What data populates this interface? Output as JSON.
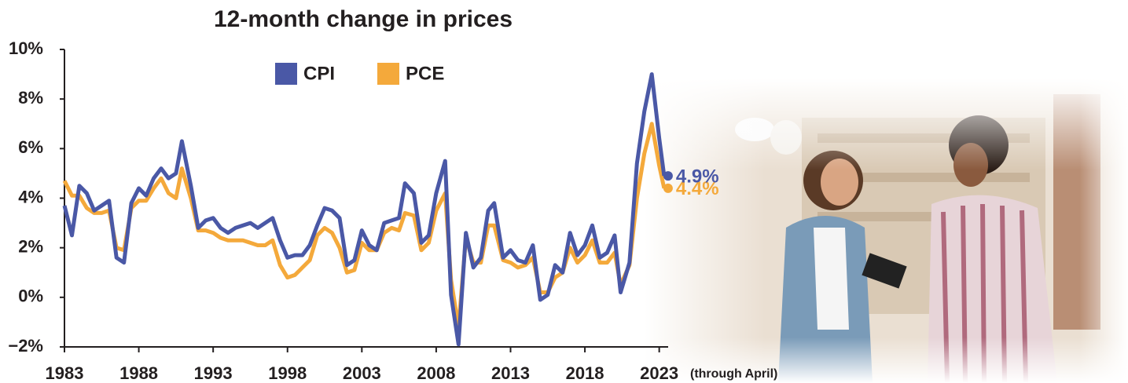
{
  "chart_data": {
    "type": "line",
    "title": "12-month change in prices",
    "annotation": "(through April)",
    "x": [
      1983.0,
      1983.5,
      1984,
      1984.5,
      1985,
      1985.5,
      1986,
      1986.5,
      1987,
      1987.5,
      1988,
      1988.5,
      1989,
      1989.5,
      1990,
      1990.5,
      1990.9,
      1991.5,
      1992,
      1992.5,
      1993,
      1993.5,
      1994,
      1994.5,
      1995,
      1995.5,
      1996,
      1996.5,
      1997,
      1997.5,
      1998,
      1998.5,
      1999,
      1999.5,
      2000,
      2000.5,
      2001,
      2001.5,
      2002,
      2002.5,
      2003,
      2003.5,
      2004,
      2004.5,
      2005,
      2005.5,
      2005.9,
      2006.5,
      2007,
      2007.5,
      2008,
      2008.6,
      2009,
      2009.5,
      2010,
      2010.5,
      2011,
      2011.5,
      2011.9,
      2012.5,
      2013,
      2013.5,
      2014,
      2014.5,
      2015,
      2015.5,
      2016,
      2016.5,
      2017,
      2017.5,
      2018,
      2018.5,
      2019,
      2019.5,
      2020,
      2020.4,
      2021,
      2021.5,
      2022,
      2022.5,
      2023,
      2023.33
    ],
    "series": [
      {
        "name": "CPI",
        "color": "#4a58a6",
        "values": [
          3.7,
          2.5,
          4.5,
          4.2,
          3.5,
          3.7,
          3.9,
          1.6,
          1.4,
          3.8,
          4.4,
          4.1,
          4.8,
          5.2,
          4.8,
          5.0,
          6.3,
          4.5,
          2.8,
          3.1,
          3.2,
          2.8,
          2.6,
          2.8,
          2.9,
          3.0,
          2.8,
          3.0,
          3.2,
          2.3,
          1.6,
          1.7,
          1.7,
          2.1,
          2.9,
          3.6,
          3.5,
          3.2,
          1.3,
          1.5,
          2.7,
          2.1,
          1.9,
          3.0,
          3.1,
          3.2,
          4.6,
          4.2,
          2.2,
          2.5,
          4.2,
          5.5,
          0.1,
          -1.9,
          2.6,
          1.2,
          1.6,
          3.5,
          3.8,
          1.6,
          1.9,
          1.5,
          1.4,
          2.1,
          -0.1,
          0.1,
          1.3,
          1.0,
          2.6,
          1.7,
          2.1,
          2.9,
          1.6,
          1.8,
          2.5,
          0.2,
          1.4,
          5.4,
          7.5,
          9.0,
          6.4,
          4.9
        ],
        "value_labels": [
          null,
          null,
          null,
          null,
          null,
          null,
          null,
          null,
          null,
          null,
          null,
          null,
          null,
          null,
          null,
          null,
          null,
          null,
          null,
          null,
          null,
          null,
          null,
          null,
          null,
          null,
          null,
          null,
          null,
          null,
          null,
          null,
          null,
          null,
          null,
          null,
          null,
          null,
          null,
          null,
          null,
          null,
          null,
          null,
          null,
          null,
          null,
          null,
          null,
          null,
          null,
          null,
          null,
          null,
          null,
          null,
          null,
          null,
          null,
          null,
          null,
          null,
          null,
          null,
          null,
          null,
          null,
          null,
          null,
          null,
          null,
          null,
          null,
          null,
          null,
          null,
          null,
          null,
          null,
          null,
          null,
          "4.9%"
        ]
      },
      {
        "name": "PCE",
        "color": "#f4a93b",
        "values": [
          4.7,
          4.1,
          4.1,
          3.6,
          3.4,
          3.4,
          3.5,
          2.0,
          1.9,
          3.6,
          3.9,
          3.9,
          4.4,
          4.8,
          4.2,
          4.0,
          5.2,
          4.0,
          2.7,
          2.7,
          2.6,
          2.4,
          2.3,
          2.3,
          2.3,
          2.2,
          2.1,
          2.1,
          2.3,
          1.3,
          0.8,
          0.9,
          1.2,
          1.5,
          2.5,
          2.8,
          2.6,
          2.0,
          1.0,
          1.1,
          2.2,
          1.9,
          1.9,
          2.6,
          2.8,
          2.7,
          3.4,
          3.3,
          1.9,
          2.2,
          3.5,
          4.2,
          0.7,
          -1.2,
          2.4,
          1.4,
          1.4,
          2.9,
          2.9,
          1.5,
          1.4,
          1.2,
          1.3,
          1.6,
          0.2,
          0.2,
          0.8,
          1.0,
          2.0,
          1.4,
          1.7,
          2.3,
          1.4,
          1.4,
          1.8,
          0.5,
          1.3,
          4.0,
          5.8,
          7.0,
          5.3,
          4.4
        ],
        "value_labels": [
          null,
          null,
          null,
          null,
          null,
          null,
          null,
          null,
          null,
          null,
          null,
          null,
          null,
          null,
          null,
          null,
          null,
          null,
          null,
          null,
          null,
          null,
          null,
          null,
          null,
          null,
          null,
          null,
          null,
          null,
          null,
          null,
          null,
          null,
          null,
          null,
          null,
          null,
          null,
          null,
          null,
          null,
          null,
          null,
          null,
          null,
          null,
          null,
          null,
          null,
          null,
          null,
          null,
          null,
          null,
          null,
          null,
          null,
          null,
          null,
          null,
          null,
          null,
          null,
          null,
          null,
          null,
          null,
          null,
          null,
          null,
          null,
          null,
          null,
          null,
          null,
          null,
          null,
          null,
          null,
          null,
          "4.4%"
        ]
      }
    ],
    "xlim": [
      1983,
      2023.6
    ],
    "xticks": [
      1983,
      1988,
      1993,
      1998,
      2003,
      2008,
      2013,
      2018,
      2023
    ],
    "ylim": [
      -2,
      10
    ],
    "yticks": [
      {
        "value": -2,
        "label": "−2%"
      },
      {
        "value": 0,
        "label": "0%"
      },
      {
        "value": 2,
        "label": "2%"
      },
      {
        "value": 4,
        "label": "4%"
      },
      {
        "value": 6,
        "label": "6%"
      },
      {
        "value": 8,
        "label": "8%"
      },
      {
        "value": 10,
        "label": "10%"
      }
    ],
    "grid": false,
    "legend": "top"
  }
}
